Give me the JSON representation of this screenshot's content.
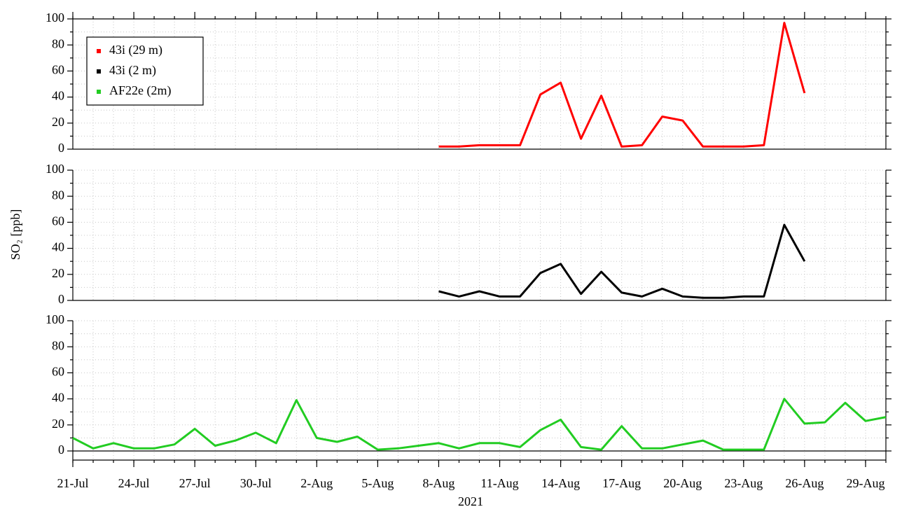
{
  "chart_data": [
    {
      "type": "line",
      "x": [
        "2021-07-21",
        "2021-07-22",
        "2021-07-23",
        "2021-07-24",
        "2021-07-25",
        "2021-07-26",
        "2021-07-27",
        "2021-07-28",
        "2021-07-29",
        "2021-07-30",
        "2021-07-31",
        "2021-08-01",
        "2021-08-02",
        "2021-08-03",
        "2021-08-04",
        "2021-08-05",
        "2021-08-06",
        "2021-08-07",
        "2021-08-08",
        "2021-08-09",
        "2021-08-10",
        "2021-08-11",
        "2021-08-12",
        "2021-08-13",
        "2021-08-14",
        "2021-08-15",
        "2021-08-16",
        "2021-08-17",
        "2021-08-18",
        "2021-08-19",
        "2021-08-20",
        "2021-08-21",
        "2021-08-22",
        "2021-08-23",
        "2021-08-24",
        "2021-08-25",
        "2021-08-26",
        "2021-08-27",
        "2021-08-28",
        "2021-08-29",
        "2021-08-30"
      ],
      "series": [
        {
          "name": "43i (29 m)",
          "color": "#ff0000",
          "values": [
            null,
            null,
            null,
            null,
            null,
            null,
            null,
            null,
            null,
            null,
            null,
            null,
            null,
            null,
            null,
            null,
            null,
            null,
            2,
            2,
            3,
            3,
            3,
            42,
            51,
            8,
            41,
            2,
            3,
            25,
            22,
            2,
            2,
            2,
            3,
            97,
            43,
            null,
            null,
            null,
            null
          ]
        }
      ],
      "xlim": [
        "2021-07-21",
        "2021-08-30"
      ],
      "ylim": [
        0,
        100
      ],
      "yticks": [
        0,
        20,
        40,
        60,
        80,
        100
      ],
      "grid": true,
      "legend": "upper left"
    },
    {
      "type": "line",
      "x": [
        "2021-07-21",
        "2021-07-22",
        "2021-07-23",
        "2021-07-24",
        "2021-07-25",
        "2021-07-26",
        "2021-07-27",
        "2021-07-28",
        "2021-07-29",
        "2021-07-30",
        "2021-07-31",
        "2021-08-01",
        "2021-08-02",
        "2021-08-03",
        "2021-08-04",
        "2021-08-05",
        "2021-08-06",
        "2021-08-07",
        "2021-08-08",
        "2021-08-09",
        "2021-08-10",
        "2021-08-11",
        "2021-08-12",
        "2021-08-13",
        "2021-08-14",
        "2021-08-15",
        "2021-08-16",
        "2021-08-17",
        "2021-08-18",
        "2021-08-19",
        "2021-08-20",
        "2021-08-21",
        "2021-08-22",
        "2021-08-23",
        "2021-08-24",
        "2021-08-25",
        "2021-08-26",
        "2021-08-27",
        "2021-08-28",
        "2021-08-29",
        "2021-08-30"
      ],
      "series": [
        {
          "name": "43i (2 m)",
          "color": "#000000",
          "values": [
            null,
            null,
            null,
            null,
            null,
            null,
            null,
            null,
            null,
            null,
            null,
            null,
            null,
            null,
            null,
            null,
            null,
            null,
            7,
            3,
            7,
            3,
            3,
            21,
            28,
            5,
            22,
            6,
            3,
            9,
            3,
            2,
            2,
            3,
            3,
            58,
            30,
            null,
            null,
            null,
            null
          ]
        }
      ],
      "xlim": [
        "2021-07-21",
        "2021-08-30"
      ],
      "ylim": [
        0,
        100
      ],
      "yticks": [
        0,
        20,
        40,
        60,
        80,
        100
      ],
      "ylabel": "SO₂ [ppb]",
      "grid": true
    },
    {
      "type": "line",
      "x": [
        "2021-07-21",
        "2021-07-22",
        "2021-07-23",
        "2021-07-24",
        "2021-07-25",
        "2021-07-26",
        "2021-07-27",
        "2021-07-28",
        "2021-07-29",
        "2021-07-30",
        "2021-07-31",
        "2021-08-01",
        "2021-08-02",
        "2021-08-03",
        "2021-08-04",
        "2021-08-05",
        "2021-08-06",
        "2021-08-07",
        "2021-08-08",
        "2021-08-09",
        "2021-08-10",
        "2021-08-11",
        "2021-08-12",
        "2021-08-13",
        "2021-08-14",
        "2021-08-15",
        "2021-08-16",
        "2021-08-17",
        "2021-08-18",
        "2021-08-19",
        "2021-08-20",
        "2021-08-21",
        "2021-08-22",
        "2021-08-23",
        "2021-08-24",
        "2021-08-25",
        "2021-08-26",
        "2021-08-27",
        "2021-08-28",
        "2021-08-29",
        "2021-08-30"
      ],
      "series": [
        {
          "name": "AF22e (2m)",
          "color": "#22cc22",
          "values": [
            10,
            2,
            6,
            2,
            2,
            5,
            17,
            4,
            8,
            14,
            6,
            39,
            10,
            7,
            11,
            1,
            2,
            4,
            6,
            2,
            6,
            6,
            3,
            16,
            24,
            3,
            1,
            19,
            2,
            2,
            5,
            8,
            1,
            1,
            1,
            40,
            21,
            22,
            37,
            23,
            26
          ]
        }
      ],
      "xlim": [
        "2021-07-21",
        "2021-08-30"
      ],
      "ylim": [
        -7,
        100
      ],
      "yticks": [
        0,
        20,
        40,
        60,
        80,
        100
      ],
      "xticks": [
        {
          "value": "2021-07-21",
          "label": "21-Jul"
        },
        {
          "value": "2021-07-24",
          "label": "24-Jul"
        },
        {
          "value": "2021-07-27",
          "label": "27-Jul"
        },
        {
          "value": "2021-07-30",
          "label": "30-Jul"
        },
        {
          "value": "2021-08-02",
          "label": "2-Aug"
        },
        {
          "value": "2021-08-05",
          "label": "5-Aug"
        },
        {
          "value": "2021-08-08",
          "label": "8-Aug"
        },
        {
          "value": "2021-08-11",
          "label": "11-Aug"
        },
        {
          "value": "2021-08-14",
          "label": "14-Aug"
        },
        {
          "value": "2021-08-17",
          "label": "17-Aug"
        },
        {
          "value": "2021-08-20",
          "label": "20-Aug"
        },
        {
          "value": "2021-08-23",
          "label": "23-Aug"
        },
        {
          "value": "2021-08-26",
          "label": "26-Aug"
        },
        {
          "value": "2021-08-29",
          "label": "29-Aug"
        }
      ],
      "xlabel": "2021",
      "grid": true
    }
  ]
}
